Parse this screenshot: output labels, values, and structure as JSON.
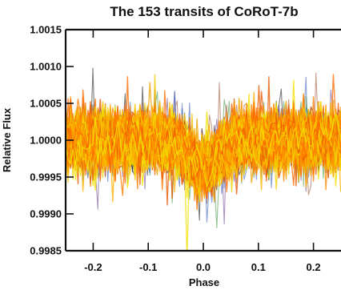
{
  "chart_data": {
    "type": "line",
    "title": "The 153 transits of CoRoT-7b",
    "xlabel": "Phase",
    "ylabel": "Relative Flux",
    "xlim": [
      -0.25,
      0.25
    ],
    "ylim": [
      0.9985,
      1.0015
    ],
    "xticks": [
      -0.2,
      -0.1,
      0.0,
      0.1,
      0.2
    ],
    "xtick_labels": [
      "-0.2",
      "-0.1",
      "0.0",
      "0.1",
      "0.2"
    ],
    "yticks": [
      0.9985,
      0.999,
      0.9995,
      1.0,
      1.0005,
      1.001,
      1.0015
    ],
    "ytick_labels": [
      "0.9985",
      "0.9990",
      "0.9995",
      "1.0000",
      "1.0005",
      "1.0010",
      "1.0015"
    ],
    "grid": false,
    "series_count": 153,
    "transit_depth": 0.00035,
    "series_colors": [
      "#f5c400",
      "#f0a000",
      "#ff8c00",
      "#ff7a00",
      "#e85a00",
      "#f2d000",
      "#ffb000",
      "#ff6a00",
      "#f4e000",
      "#3b8f3b",
      "#2f58b7",
      "#111111",
      "#9b4f2d",
      "#6a3f8f"
    ]
  }
}
